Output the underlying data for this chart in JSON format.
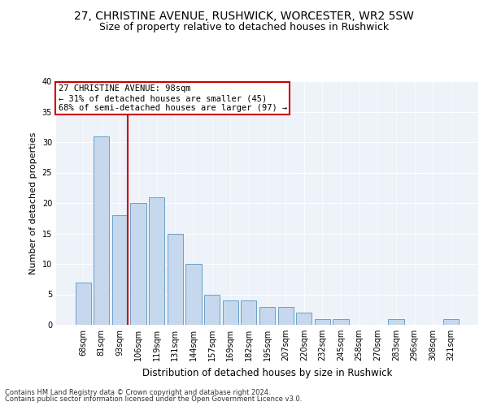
{
  "title1": "27, CHRISTINE AVENUE, RUSHWICK, WORCESTER, WR2 5SW",
  "title2": "Size of property relative to detached houses in Rushwick",
  "xlabel": "Distribution of detached houses by size in Rushwick",
  "ylabel": "Number of detached properties",
  "categories": [
    "68sqm",
    "81sqm",
    "93sqm",
    "106sqm",
    "119sqm",
    "131sqm",
    "144sqm",
    "157sqm",
    "169sqm",
    "182sqm",
    "195sqm",
    "207sqm",
    "220sqm",
    "232sqm",
    "245sqm",
    "258sqm",
    "270sqm",
    "283sqm",
    "296sqm",
    "308sqm",
    "321sqm"
  ],
  "values": [
    7,
    31,
    18,
    20,
    21,
    15,
    10,
    5,
    4,
    4,
    3,
    3,
    2,
    1,
    1,
    0,
    0,
    1,
    0,
    0,
    1
  ],
  "bar_color": "#c5d8ed",
  "bar_edge_color": "#6aa0c7",
  "vline_color": "#cc0000",
  "annotation_line1": "27 CHRISTINE AVENUE: 98sqm",
  "annotation_line2": "← 31% of detached houses are smaller (45)",
  "annotation_line3": "68% of semi-detached houses are larger (97) →",
  "annotation_box_color": "#cc0000",
  "ylim": [
    0,
    40
  ],
  "yticks": [
    0,
    5,
    10,
    15,
    20,
    25,
    30,
    35,
    40
  ],
  "footer1": "Contains HM Land Registry data © Crown copyright and database right 2024.",
  "footer2": "Contains public sector information licensed under the Open Government Licence v3.0.",
  "bg_color": "#eef2f9",
  "title1_fontsize": 10,
  "title2_fontsize": 9,
  "xlabel_fontsize": 8.5,
  "ylabel_fontsize": 8,
  "tick_fontsize": 7,
  "ann_fontsize": 7.5,
  "footer_fontsize": 6
}
